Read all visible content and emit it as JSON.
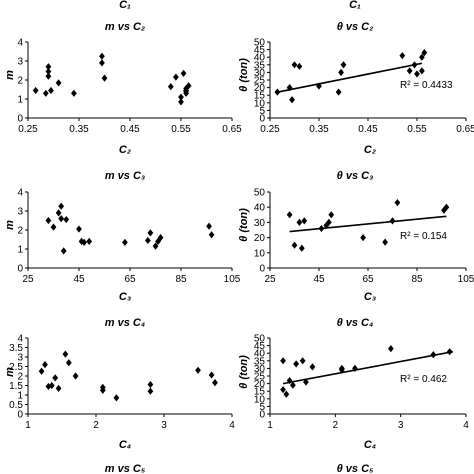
{
  "chart_data": [
    {
      "type": "scatter",
      "title": "m vs C₂",
      "xlabel": "C₂",
      "ylabel": "m",
      "xlim": [
        0.25,
        0.65
      ],
      "ylim": [
        0,
        4
      ],
      "xticks": [
        "0.25",
        "0.35",
        "0.45",
        "0.55",
        "0.65"
      ],
      "yticks": [
        "0",
        "1",
        "2",
        "3",
        "4"
      ],
      "x": [
        0.265,
        0.285,
        0.29,
        0.29,
        0.29,
        0.295,
        0.31,
        0.34,
        0.395,
        0.395,
        0.4,
        0.53,
        0.54,
        0.55,
        0.55,
        0.555,
        0.56,
        0.56,
        0.56,
        0.56,
        0.565
      ],
      "y": [
        1.45,
        1.3,
        2.7,
        2.45,
        2.2,
        1.45,
        1.85,
        1.3,
        3.25,
        2.9,
        2.1,
        1.65,
        2.15,
        0.85,
        1.1,
        2.35,
        1.3,
        1.4,
        1.45,
        1.55,
        1.7
      ],
      "trendline": false
    },
    {
      "type": "scatter",
      "title": "θ vs C₂",
      "xlabel": "C₂",
      "ylabel": "θ (ton)",
      "xlim": [
        0.25,
        0.65
      ],
      "ylim": [
        0,
        50
      ],
      "xticks": [
        "0.25",
        "0.35",
        "0.45",
        "0.55",
        "0.65"
      ],
      "yticks": [
        "0",
        "5",
        "10",
        "15",
        "20",
        "25",
        "30",
        "35",
        "40",
        "45",
        "50"
      ],
      "x": [
        0.265,
        0.29,
        0.295,
        0.3,
        0.31,
        0.35,
        0.39,
        0.395,
        0.4,
        0.52,
        0.535,
        0.545,
        0.55,
        0.56,
        0.56,
        0.565
      ],
      "y": [
        17,
        20,
        12,
        35,
        34,
        21,
        17,
        30,
        35,
        41,
        31,
        35,
        29,
        31,
        40,
        43
      ],
      "trendline": true,
      "trend_start": [
        0.265,
        17
      ],
      "trend_end": [
        0.56,
        36
      ],
      "r2_label": "R² = 0.4433"
    },
    {
      "type": "scatter",
      "title": "m vs C₃",
      "xlabel": "C₃",
      "ylabel": "m",
      "xlim": [
        25,
        105
      ],
      "ylim": [
        0,
        4
      ],
      "xticks": [
        "25",
        "45",
        "65",
        "85",
        "105"
      ],
      "yticks": [
        "0",
        "1",
        "2",
        "3",
        "4"
      ],
      "x": [
        33,
        35,
        37,
        38,
        38,
        39,
        40,
        45,
        46,
        47,
        49,
        63,
        72,
        73,
        75,
        76,
        77,
        96,
        97
      ],
      "y": [
        2.5,
        2.15,
        2.9,
        3.25,
        2.6,
        0.9,
        2.55,
        2.05,
        1.4,
        1.35,
        1.4,
        1.35,
        1.45,
        1.85,
        1.15,
        1.4,
        1.6,
        2.2,
        1.75
      ],
      "trendline": false
    },
    {
      "type": "scatter",
      "title": "θ vs C₃",
      "xlabel": "C₃",
      "ylabel": "θ (ton)",
      "xlim": [
        25,
        105
      ],
      "ylim": [
        0,
        50
      ],
      "xticks": [
        "25",
        "45",
        "65",
        "85",
        "105"
      ],
      "yticks": [
        "0",
        "10",
        "20",
        "30",
        "40",
        "50"
      ],
      "x": [
        33,
        35,
        37,
        38,
        39,
        46,
        48,
        49,
        50,
        63,
        72,
        75,
        77,
        96,
        97
      ],
      "y": [
        35,
        15,
        30,
        13,
        31,
        26,
        28,
        30,
        35,
        20,
        17,
        31,
        43,
        38,
        40
      ],
      "trendline": true,
      "trend_start": [
        33,
        24
      ],
      "trend_end": [
        97,
        34
      ],
      "r2_label": "R² = 0.154"
    },
    {
      "type": "scatter",
      "title": "m vs C₄",
      "xlabel": "C₄",
      "ylabel": "m",
      "xlim": [
        1,
        4
      ],
      "ylim": [
        0,
        4
      ],
      "xticks": [
        "1",
        "2",
        "3",
        "4"
      ],
      "yticks": [
        "0",
        "0.5",
        "1",
        "1.5",
        "2",
        "2.5",
        "3",
        "3.5",
        "4"
      ],
      "x": [
        1.2,
        1.25,
        1.3,
        1.35,
        1.4,
        1.45,
        1.55,
        1.6,
        1.7,
        2.1,
        2.1,
        2.3,
        2.8,
        2.8,
        3.5,
        3.7,
        3.75
      ],
      "y": [
        2.25,
        2.6,
        1.45,
        1.5,
        1.9,
        1.35,
        3.15,
        2.7,
        2.0,
        1.4,
        1.25,
        0.85,
        1.55,
        1.2,
        2.3,
        2.05,
        1.65
      ],
      "trendline": false
    },
    {
      "type": "scatter",
      "title": "θ vs C₄",
      "xlabel": "C₄",
      "ylabel": "θ (ton)",
      "xlim": [
        1,
        4
      ],
      "ylim": [
        0,
        50
      ],
      "xticks": [
        "1",
        "2",
        "3",
        "4"
      ],
      "yticks": [
        "0",
        "5",
        "10",
        "15",
        "20",
        "25",
        "30",
        "35",
        "40",
        "45",
        "50"
      ],
      "x": [
        1.2,
        1.2,
        1.25,
        1.3,
        1.35,
        1.4,
        1.5,
        1.55,
        1.65,
        2.1,
        2.1,
        2.3,
        2.85,
        3.5,
        3.75
      ],
      "y": [
        35,
        16,
        13,
        22,
        19,
        33,
        35,
        21,
        31,
        29,
        30,
        30,
        43,
        39,
        41
      ],
      "trendline": true,
      "trend_start": [
        1.2,
        20
      ],
      "trend_end": [
        3.8,
        41
      ],
      "r2_label": "R² = 0.462"
    }
  ],
  "partial_titles": {
    "top_left": "C₁",
    "top_right": "C₁",
    "bottom_left": "m vs C₅",
    "bottom_right": "θ vs C₅"
  }
}
